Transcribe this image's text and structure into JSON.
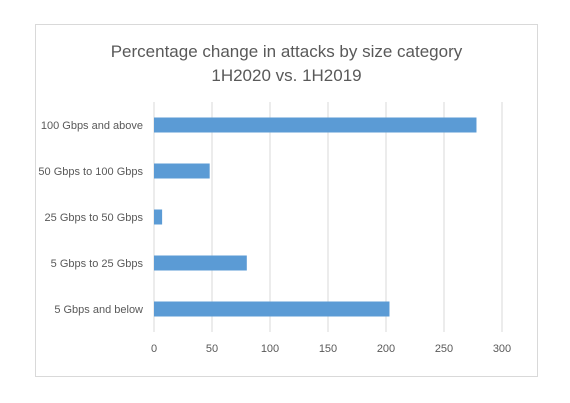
{
  "chart_data": {
    "type": "bar",
    "orientation": "horizontal",
    "title_line1": "Percentage change in attacks by size category",
    "title_line2": "1H2020 vs. 1H2019",
    "categories": [
      "100 Gbps and above",
      "50 Gbps to 100 Gbps",
      "25 Gbps to 50 Gbps",
      "5 Gbps to 25 Gbps",
      "5 Gbps and below"
    ],
    "values": [
      278,
      48,
      7,
      80,
      203
    ],
    "xlim": [
      0,
      300
    ],
    "xticks": [
      "0",
      "50",
      "100",
      "150",
      "200",
      "250",
      "300"
    ],
    "xtick_values": [
      0,
      50,
      100,
      150,
      200,
      250,
      300
    ],
    "grid": true,
    "legend": "none",
    "bar_color": "#5b9bd5",
    "grid_color": "#d9d9d9"
  }
}
